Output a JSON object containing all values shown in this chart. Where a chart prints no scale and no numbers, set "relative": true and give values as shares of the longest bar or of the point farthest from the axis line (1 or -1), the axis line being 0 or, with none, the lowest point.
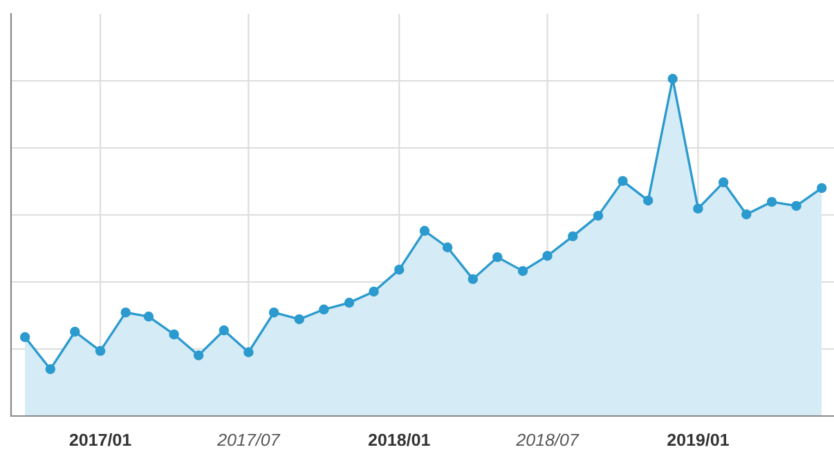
{
  "chart_data": {
    "type": "area",
    "relative": true,
    "marker": "circle",
    "line_style": "solid",
    "grid": true,
    "legend": false,
    "x": [
      "2016-10",
      "2016-11",
      "2016-12",
      "2017-01",
      "2017-02",
      "2017-03",
      "2017-04",
      "2017-05",
      "2017-06",
      "2017-07",
      "2017-08",
      "2017-09",
      "2017-10",
      "2017-11",
      "2017-12",
      "2018-01",
      "2018-02",
      "2018-03",
      "2018-04",
      "2018-05",
      "2018-06",
      "2018-07",
      "2018-08",
      "2018-09",
      "2018-10",
      "2018-11",
      "2018-12",
      "2019-01",
      "2019-02",
      "2019-03",
      "2019-04",
      "2019-05",
      "2019-06"
    ],
    "xlim": [
      "2016-09-14",
      "2019-06-16"
    ],
    "xticks": [
      {
        "value": "2017-01",
        "label": "2017/01"
      },
      {
        "value": "2017-07",
        "label": "2017/07"
      },
      {
        "value": "2018-01",
        "label": "2018/01"
      },
      {
        "value": "2018-07",
        "label": "2018/07"
      },
      {
        "value": "2019-01",
        "label": "2019/01"
      }
    ],
    "series": [
      {
        "color": "#2b9ace",
        "values": [
          0.234,
          0.139,
          0.25,
          0.193,
          0.307,
          0.295,
          0.242,
          0.18,
          0.254,
          0.189,
          0.307,
          0.287,
          0.316,
          0.336,
          0.369,
          0.434,
          0.549,
          0.5,
          0.406,
          0.471,
          0.43,
          0.475,
          0.533,
          0.594,
          0.697,
          0.639,
          1,
          0.615,
          0.693,
          0.598,
          0.635,
          0.623,
          0.676
        ]
      }
    ]
  }
}
